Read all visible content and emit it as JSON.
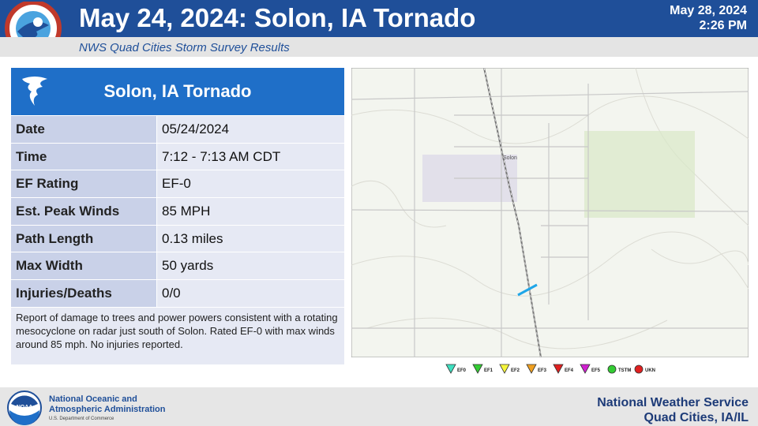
{
  "header": {
    "title": "May 24, 2024:  Solon, IA Tornado",
    "date": "May 28, 2024",
    "time": "2:26 PM",
    "subtitle": "NWS Quad Cities Storm Survey Results"
  },
  "table": {
    "title": "Solon, IA Tornado",
    "rows": [
      [
        "Date",
        "05/24/2024"
      ],
      [
        "Time",
        "7:12 - 7:13 AM CDT"
      ],
      [
        "EF Rating",
        "EF-0"
      ],
      [
        "Est. Peak Winds",
        "85 MPH"
      ],
      [
        "Path Length",
        "0.13 miles"
      ],
      [
        "Max Width",
        "50 yards"
      ],
      [
        "Injuries/Deaths",
        "0/0"
      ]
    ],
    "description": "Report of damage to trees and power powers consistent with a rotating mesocyclone on radar just south of Solon. Rated EF-0 with max winds around 85 mph. No injuries reported."
  },
  "map": {
    "town_label": "Solon",
    "legend": [
      {
        "label": "EF0",
        "color": "#3fe0c0",
        "shape": "triangle"
      },
      {
        "label": "EF1",
        "color": "#33cc33",
        "shape": "triangle"
      },
      {
        "label": "EF2",
        "color": "#f5f53b",
        "shape": "triangle"
      },
      {
        "label": "EF3",
        "color": "#f0a020",
        "shape": "triangle"
      },
      {
        "label": "EF4",
        "color": "#e02020",
        "shape": "triangle"
      },
      {
        "label": "EF5",
        "color": "#d020d0",
        "shape": "triangle"
      },
      {
        "label": "TSTM",
        "color": "#33cc33",
        "shape": "circle"
      },
      {
        "label": "UKN",
        "color": "#e02020",
        "shape": "circle"
      }
    ]
  },
  "footer": {
    "logo": "NOAA",
    "agency": [
      "National Oceanic and",
      "Atmospheric Administration"
    ],
    "department": "U.S. Department of Commerce",
    "office": [
      "National Weather Service",
      "Quad Cities, IA/IL"
    ]
  }
}
